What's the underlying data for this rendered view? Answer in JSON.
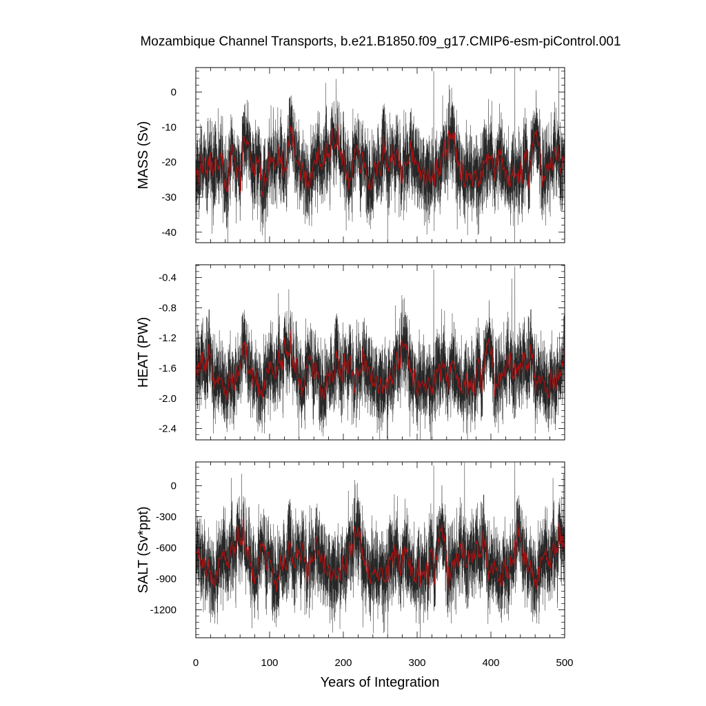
{
  "title": "Mozambique Channel Transports, b.e21.B1850.f09_g17.CMIP6-esm-piControl.001",
  "xlabel": "Years of Integration",
  "colors": {
    "raw": "#000000",
    "smoothed": "#b01010",
    "axes": "#000000"
  },
  "chart_data": [
    {
      "type": "line",
      "id": "mass",
      "ylabel": "MASS (Sv)",
      "xlim": [
        0,
        500
      ],
      "ylim": [
        -43,
        7
      ],
      "xticks": [
        0,
        100,
        200,
        300,
        400,
        500
      ],
      "yticks": [
        0,
        -10,
        -20,
        -30,
        -40
      ],
      "ytick_labels": [
        "0",
        "-10",
        "-20",
        "-30",
        "-40"
      ],
      "series": [
        {
          "style": "monthly-raw",
          "mean": -21,
          "spread": 5.5,
          "points_per_year": 12
        },
        {
          "style": "annual-smoothed",
          "mean": -21,
          "spread": 1.5
        }
      ],
      "annotations": {
        "max_spike": 7,
        "min_spike": -42
      }
    },
    {
      "type": "line",
      "id": "heat",
      "ylabel": "HEAT (PW)",
      "xlim": [
        0,
        500
      ],
      "ylim": [
        -2.55,
        -0.23
      ],
      "xticks": [
        0,
        100,
        200,
        300,
        400,
        500
      ],
      "yticks": [
        -0.4,
        -0.8,
        -1.2,
        -1.6,
        -2.0,
        -2.4
      ],
      "ytick_labels": [
        "-0.4",
        "-0.8",
        "-1.2",
        "-1.6",
        "-2.0",
        "-2.4"
      ],
      "series": [
        {
          "style": "monthly-raw",
          "mean": -1.68,
          "spread": 0.25,
          "points_per_year": 12
        },
        {
          "style": "annual-smoothed",
          "mean": -1.68,
          "spread": 0.07
        }
      ],
      "annotations": {
        "max_spike": -0.25,
        "min_spike": -2.55
      }
    },
    {
      "type": "line",
      "id": "salt",
      "ylabel": "SALT (Sv*ppt)",
      "xlim": [
        0,
        500
      ],
      "ylim": [
        -1470,
        230
      ],
      "xticks": [
        0,
        100,
        200,
        300,
        400,
        500
      ],
      "xtick_labels": [
        "0",
        "100",
        "200",
        "300",
        "400",
        "500"
      ],
      "yticks": [
        0,
        -300,
        -600,
        -900,
        -1200
      ],
      "ytick_labels": [
        "0",
        "-300",
        "-600",
        "-900",
        "-1200"
      ],
      "series": [
        {
          "style": "monthly-raw",
          "mean": -740,
          "spread": 190,
          "points_per_year": 12
        },
        {
          "style": "annual-smoothed",
          "mean": -740,
          "spread": 50
        }
      ],
      "annotations": {
        "max_spike": 230,
        "min_spike": -1450
      }
    }
  ]
}
